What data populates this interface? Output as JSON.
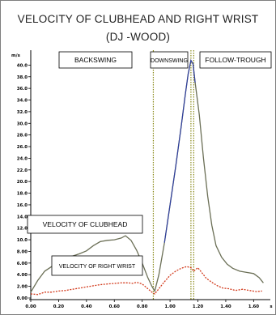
{
  "chart_data": {
    "type": "line",
    "title_line1": "VELOCITY OF CLUBHEAD AND RIGHT WRIST",
    "title_line2": "(DJ -WOOD)",
    "ylabel": "m/s",
    "xlabel": "s",
    "xlim": [
      0,
      1.72
    ],
    "ylim": [
      0,
      42
    ],
    "y_ticks": [
      "0.00",
      "2.00",
      "4.00",
      "6.00",
      "8.00",
      "10.0",
      "12.0",
      "14.0",
      "16.0",
      "18.0",
      "20.0",
      "22.0",
      "24.0",
      "26.0",
      "28.0",
      "30.0",
      "32.0",
      "34.0",
      "36.0",
      "38.0",
      "40.0"
    ],
    "x_ticks": [
      "0.00",
      "0.20",
      "0.40",
      "0.60",
      "0.80",
      "1.00",
      "1.20",
      "1.40",
      "1.60"
    ],
    "grid": false,
    "phases": [
      {
        "label": "BACKSWING",
        "start": 0.0,
        "end": 0.88
      },
      {
        "label": "DOWNSWING",
        "start": 0.88,
        "end": 1.17
      },
      {
        "label": "FOLLOW-TROUGH",
        "start": 1.17,
        "end": 1.72
      }
    ],
    "phase_lines_x": [
      0.88,
      1.15,
      1.17
    ],
    "series": [
      {
        "name": "VELOCITY OF CLUBHEAD",
        "color": "#6b6f56",
        "peak_color": "#2f3fa0",
        "points": [
          [
            0.0,
            1.0
          ],
          [
            0.05,
            3.0
          ],
          [
            0.1,
            4.6
          ],
          [
            0.15,
            5.4
          ],
          [
            0.2,
            6.0
          ],
          [
            0.25,
            6.9
          ],
          [
            0.3,
            7.2
          ],
          [
            0.35,
            7.6
          ],
          [
            0.4,
            8.1
          ],
          [
            0.45,
            9.0
          ],
          [
            0.5,
            9.7
          ],
          [
            0.55,
            9.9
          ],
          [
            0.6,
            10.0
          ],
          [
            0.65,
            10.3
          ],
          [
            0.68,
            10.7
          ],
          [
            0.72,
            9.9
          ],
          [
            0.76,
            8.2
          ],
          [
            0.8,
            6.0
          ],
          [
            0.84,
            3.5
          ],
          [
            0.87,
            2.0
          ],
          [
            0.89,
            1.2
          ],
          [
            0.92,
            4.0
          ],
          [
            0.96,
            9.5
          ],
          [
            1.0,
            16.0
          ],
          [
            1.04,
            22.5
          ],
          [
            1.08,
            29.5
          ],
          [
            1.11,
            35.0
          ],
          [
            1.13,
            38.5
          ],
          [
            1.15,
            40.8
          ],
          [
            1.165,
            40.2
          ],
          [
            1.18,
            37.0
          ],
          [
            1.21,
            31.5
          ],
          [
            1.24,
            24.0
          ],
          [
            1.27,
            17.5
          ],
          [
            1.3,
            12.5
          ],
          [
            1.33,
            9.0
          ],
          [
            1.37,
            7.0
          ],
          [
            1.41,
            5.8
          ],
          [
            1.45,
            5.1
          ],
          [
            1.5,
            4.6
          ],
          [
            1.55,
            4.4
          ],
          [
            1.6,
            4.2
          ],
          [
            1.64,
            3.5
          ],
          [
            1.67,
            2.6
          ]
        ]
      },
      {
        "name": "VELOCITY OF RIGHT WRIST",
        "color": "#d23a1c",
        "points": [
          [
            0.0,
            0.7
          ],
          [
            0.05,
            0.6
          ],
          [
            0.1,
            1.0
          ],
          [
            0.15,
            1.0
          ],
          [
            0.2,
            1.2
          ],
          [
            0.25,
            1.3
          ],
          [
            0.3,
            1.5
          ],
          [
            0.35,
            1.7
          ],
          [
            0.4,
            1.9
          ],
          [
            0.45,
            2.1
          ],
          [
            0.5,
            2.3
          ],
          [
            0.55,
            2.4
          ],
          [
            0.6,
            2.5
          ],
          [
            0.65,
            2.6
          ],
          [
            0.7,
            2.6
          ],
          [
            0.73,
            2.5
          ],
          [
            0.76,
            2.7
          ],
          [
            0.8,
            2.4
          ],
          [
            0.84,
            1.6
          ],
          [
            0.87,
            1.0
          ],
          [
            0.89,
            0.7
          ],
          [
            0.92,
            1.6
          ],
          [
            0.96,
            2.8
          ],
          [
            1.0,
            3.9
          ],
          [
            1.04,
            4.6
          ],
          [
            1.08,
            5.1
          ],
          [
            1.12,
            5.4
          ],
          [
            1.15,
            5.2
          ],
          [
            1.17,
            4.6
          ],
          [
            1.2,
            5.2
          ],
          [
            1.23,
            4.3
          ],
          [
            1.26,
            3.4
          ],
          [
            1.3,
            2.7
          ],
          [
            1.34,
            2.1
          ],
          [
            1.38,
            1.7
          ],
          [
            1.42,
            1.6
          ],
          [
            1.47,
            1.3
          ],
          [
            1.52,
            1.5
          ],
          [
            1.57,
            1.3
          ],
          [
            1.62,
            1.1
          ],
          [
            1.66,
            1.2
          ]
        ]
      }
    ]
  }
}
